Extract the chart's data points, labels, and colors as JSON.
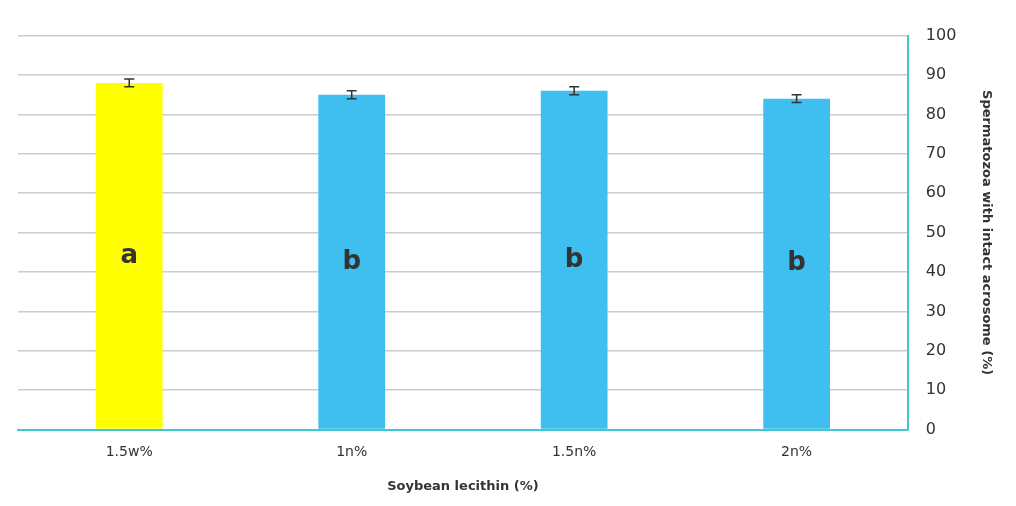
{
  "chart_data": {
    "type": "bar",
    "xlabel": "Soybean lecithin (%)",
    "ylabel": "Spermatozoa with intact acrosome (%)",
    "categories": [
      "1.5w%",
      "1n%",
      "1.5n%",
      "2n%"
    ],
    "values": [
      88,
      85,
      86,
      84
    ],
    "colors": [
      "#ffff00",
      "#3fbfef",
      "#3fbfef",
      "#3fbfef"
    ],
    "errors": [
      1,
      1,
      1,
      1
    ],
    "ylim": [
      0,
      100
    ],
    "yticks": [
      0,
      10,
      20,
      30,
      40,
      50,
      60,
      70,
      80,
      90,
      100
    ],
    "grid": "y",
    "annotations": [
      "a",
      "b",
      "b",
      "b"
    ]
  }
}
